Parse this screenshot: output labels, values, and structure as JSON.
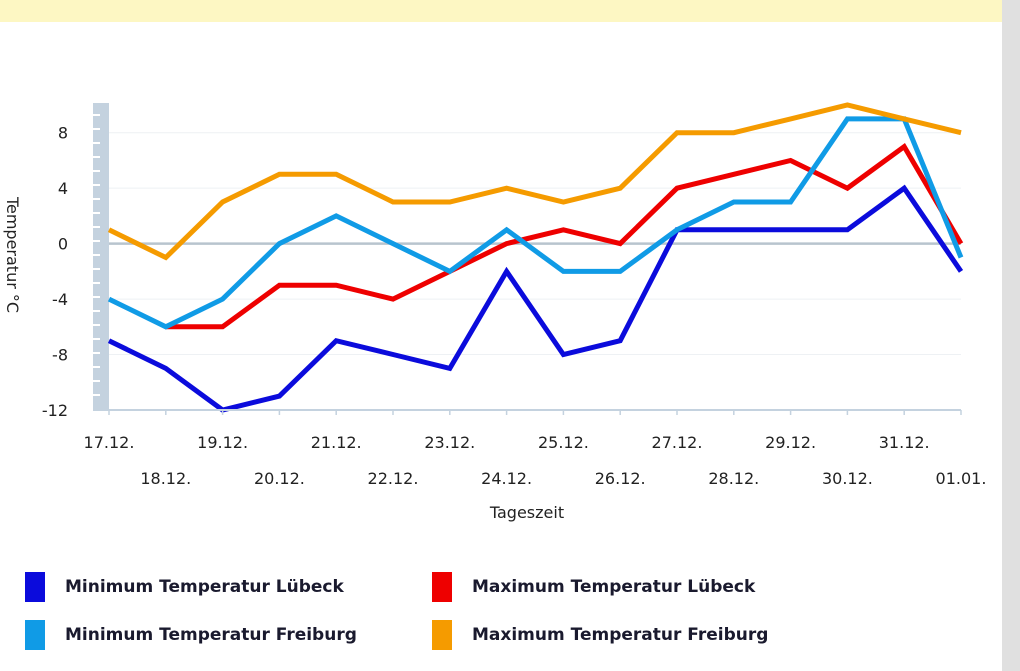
{
  "colors": {
    "banner": "#fdf7c3",
    "scrollbar": "#e0e0e0",
    "axis_band": "#c4d2df",
    "zero_line": "#b8c4ce",
    "grid": "#eef1f4"
  },
  "chart_data": {
    "type": "line",
    "xlabel": "Tageszeit",
    "ylabel": "Temperatur °C",
    "ylim": [
      -12,
      10
    ],
    "yticks": [
      8,
      4,
      0,
      -4,
      -8,
      -12
    ],
    "grid": true,
    "legend_position": "bottom",
    "categories": [
      "17.12.",
      "18.12.",
      "19.12.",
      "20.12.",
      "21.12.",
      "22.12.",
      "23.12.",
      "24.12.",
      "25.12.",
      "26.12.",
      "27.12.",
      "28.12.",
      "29.12.",
      "30.12.",
      "31.12.",
      "01.01."
    ],
    "series": [
      {
        "name": "Minimum Temperatur Lübeck",
        "color": "#0b0bdc",
        "values": [
          -7,
          -9,
          -12,
          -11,
          -7,
          -8,
          -9,
          -2,
          -8,
          -7,
          1,
          1,
          1,
          1,
          4,
          -2
        ]
      },
      {
        "name": "Maximum Temperatur Lübeck",
        "color": "#ee0000",
        "values": [
          null,
          -6,
          -6,
          -3,
          -3,
          -4,
          -2,
          0,
          1,
          0,
          4,
          5,
          6,
          4,
          7,
          0
        ]
      },
      {
        "name": "Minimum Temperatur Freiburg",
        "color": "#109be6",
        "values": [
          -4,
          -6,
          -4,
          0,
          2,
          0,
          -2,
          1,
          -2,
          -2,
          1,
          3,
          3,
          9,
          9,
          -1
        ]
      },
      {
        "name": "Maximum Temperatur Freiburg",
        "color": "#f59b00",
        "values": [
          1,
          -1,
          3,
          5,
          5,
          3,
          3,
          4,
          3,
          4,
          8,
          8,
          9,
          10,
          9,
          8
        ]
      }
    ]
  }
}
